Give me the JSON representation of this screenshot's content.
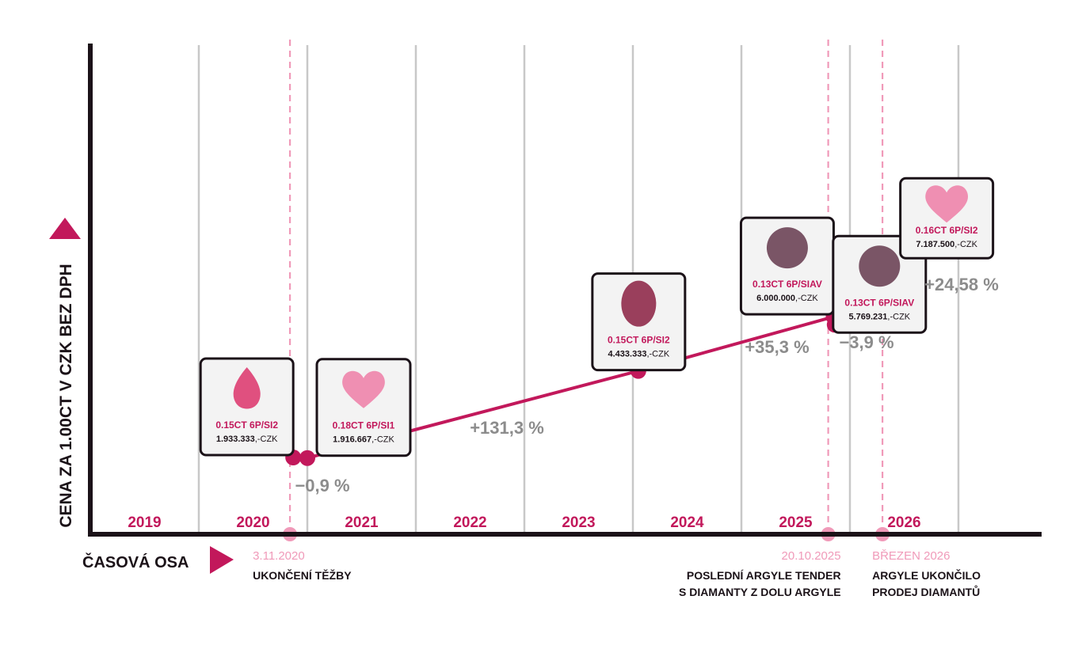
{
  "colors": {
    "accent": "#c2185b",
    "accent_light": "#f09ab9",
    "axis": "#1b1218",
    "grid": "#c8c8c8",
    "muted": "#8c8c8c"
  },
  "chart_data": {
    "type": "line",
    "title": "",
    "ylabel": "CENA ZA 1.00CT V CZK BEZ DPH",
    "xlabel": "ČASOVÁ OSA",
    "x_range": [
      2019,
      2027
    ],
    "y_unit": "CZK",
    "grid": true,
    "years": [
      "2019",
      "2020",
      "2021",
      "2022",
      "2023",
      "2024",
      "2025",
      "2026"
    ],
    "points": [
      {
        "x": 2020.87,
        "y": 1933333,
        "stone": "0.15CT 6P/SI2",
        "price_num": "1.933.333",
        "price_suffix": ",-CZK",
        "shape": "pear"
      },
      {
        "x": 2021.0,
        "y": 1916667,
        "stone": "0.18CT 6P/SI1",
        "price_num": "1.916.667",
        "price_suffix": ",-CZK",
        "shape": "heart"
      },
      {
        "x": 2024.05,
        "y": 4433333,
        "stone": "0.15CT 6P/SI2",
        "price_num": "4.433.333",
        "price_suffix": ",-CZK",
        "shape": "oval"
      },
      {
        "x": 2025.85,
        "y": 6000000,
        "stone": "0.13CT 6P/SIAV",
        "price_num": "6.000.000",
        "price_suffix": ",-CZK",
        "shape": "round"
      },
      {
        "x": 2025.86,
        "y": 5769231,
        "stone": "0.13CT 6P/SIAV",
        "price_num": "5.769.231",
        "price_suffix": ",-CZK",
        "shape": "round"
      },
      {
        "x": 2026.45,
        "y": 7187500,
        "stone": "0.16CT 6P/SI2",
        "price_num": "7.187.500",
        "price_suffix": ",-CZK",
        "shape": "heart"
      }
    ],
    "changes": [
      "−0,9 %",
      "+131,3 %",
      "+35,3 %",
      "−3,9 %",
      "+24,58 %"
    ],
    "events": [
      {
        "x": 2020.84,
        "date": "3.11.2020",
        "label": [
          "UKONČENÍ TĚŽBY"
        ]
      },
      {
        "x": 2025.8,
        "date": "20.10.2025",
        "label": [
          "POSLEDNÍ ARGYLE TENDER",
          "S DIAMANTY Z DOLU ARGYLE"
        ]
      },
      {
        "x": 2026.3,
        "date": "BŘEZEN 2026",
        "label": [
          "ARGYLE UKONČILO",
          "PRODEJ DIAMANTŮ"
        ]
      }
    ]
  }
}
